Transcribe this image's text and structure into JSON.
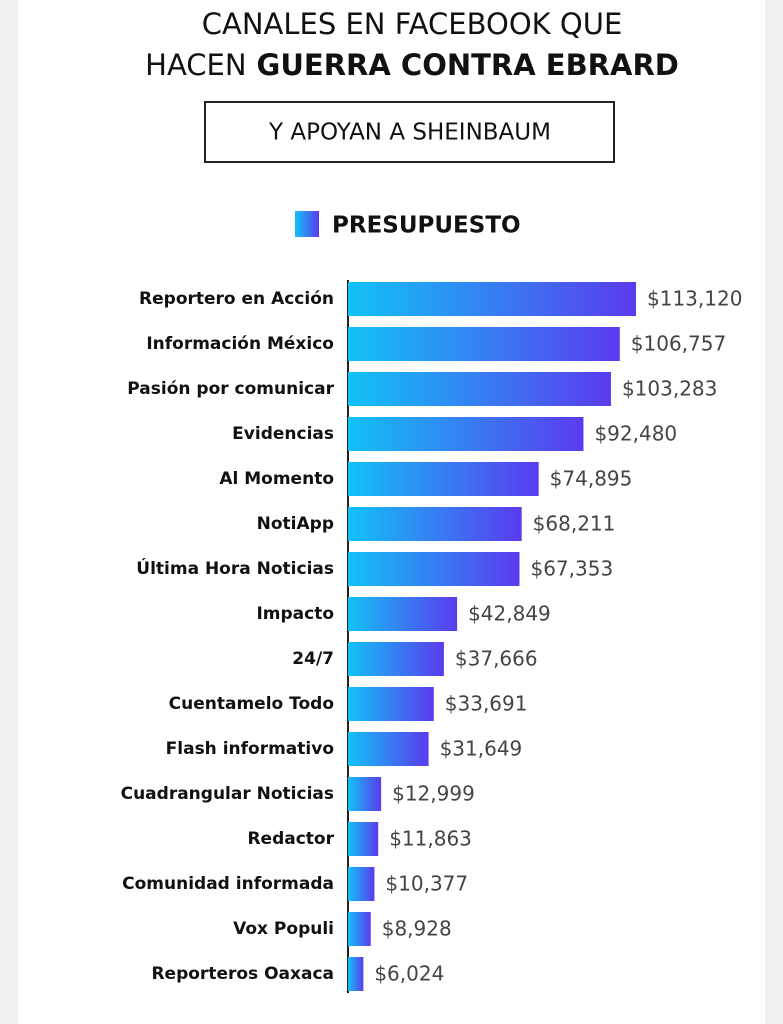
{
  "chart_data": {
    "type": "bar",
    "orientation": "horizontal",
    "title_lines": [
      [
        "CANALES EN FACEBOOK QUE"
      ],
      [
        "HACEN",
        "GUERRA CONTRA EBRARD"
      ]
    ],
    "subtitle": "Y APOYAN A SHEINBAUM",
    "series": [
      {
        "name": "PRESUPUESTO",
        "color": [
          "#12c2f6",
          "#5a3bef"
        ],
        "values": [
          113120,
          106757,
          103283,
          92480,
          74895,
          68211,
          67353,
          42849,
          37666,
          33691,
          31649,
          12999,
          11863,
          10377,
          8928,
          6024
        ],
        "value_labels": [
          "$113,120",
          "$106,757",
          "$103,283",
          "$92,480",
          "$74,895",
          "$68,211",
          "$67,353",
          "$42,849",
          "$37,666",
          "$33,691",
          "$31,649",
          "$12,999",
          "$11,863",
          "$10,377",
          "$8,928",
          "$6,024"
        ]
      }
    ],
    "categories": [
      "Reportero en Acción",
      "Información México",
      "Pasión por comunicar",
      "Evidencias",
      "Al Momento",
      "NotiApp",
      "Última Hora Noticias",
      "Impacto",
      "24/7",
      "Cuentamelo Todo",
      "Flash informativo",
      "Cuadrangular Noticias",
      "Redactor",
      "Comunidad informada",
      "Vox Populi",
      "Reporteros Oaxaca"
    ]
  }
}
